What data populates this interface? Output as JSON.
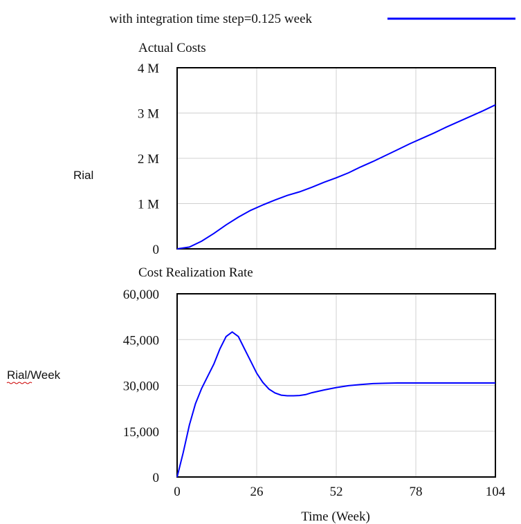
{
  "legend": {
    "label": "with integration time step=0.125 week",
    "color": "#0000ff"
  },
  "chart_data": [
    {
      "type": "line",
      "title": "Actual Costs",
      "ylabel": "Rial",
      "xlabel": "",
      "xlim": [
        0,
        104
      ],
      "ylim": [
        0,
        4000000
      ],
      "x_ticks": [
        0,
        26,
        52,
        78,
        104
      ],
      "y_ticks": [
        0,
        1000000,
        2000000,
        3000000,
        4000000
      ],
      "y_tick_labels": [
        "0",
        "1 M",
        "2 M",
        "3 M",
        "4 M"
      ],
      "grid": true,
      "series": [
        {
          "color": "#0000ff",
          "x": [
            0,
            4,
            8,
            12,
            16,
            20,
            24,
            28,
            32,
            36,
            40,
            44,
            48,
            52,
            56,
            60,
            64,
            68,
            72,
            76,
            80,
            84,
            88,
            92,
            96,
            100,
            104
          ],
          "y": [
            0,
            40000,
            170000,
            340000,
            530000,
            700000,
            850000,
            970000,
            1080000,
            1180000,
            1260000,
            1360000,
            1470000,
            1570000,
            1680000,
            1810000,
            1930000,
            2060000,
            2190000,
            2320000,
            2440000,
            2560000,
            2690000,
            2810000,
            2930000,
            3050000,
            3180000
          ]
        }
      ]
    },
    {
      "type": "line",
      "title": "Cost Realization Rate",
      "ylabel": "Rial/Week",
      "xlabel": "Time (Week)",
      "xlim": [
        0,
        104
      ],
      "ylim": [
        0,
        60000
      ],
      "x_ticks": [
        0,
        26,
        52,
        78,
        104
      ],
      "x_tick_labels": [
        "0",
        "26",
        "52",
        "78",
        "104"
      ],
      "y_ticks": [
        0,
        15000,
        30000,
        45000,
        60000
      ],
      "y_tick_labels": [
        "0",
        "15,000",
        "30,000",
        "45,000",
        "60,000"
      ],
      "grid": true,
      "series": [
        {
          "color": "#0000ff",
          "x": [
            0,
            2,
            4,
            6,
            8,
            10,
            12,
            14,
            16,
            18,
            20,
            22,
            24,
            26,
            28,
            30,
            32,
            34,
            36,
            38,
            40,
            42,
            44,
            48,
            52,
            56,
            60,
            64,
            68,
            72,
            80,
            90,
            104
          ],
          "y": [
            0,
            8000,
            17000,
            24000,
            29000,
            33000,
            37000,
            42000,
            46000,
            47500,
            46000,
            42000,
            38000,
            34000,
            31000,
            28800,
            27500,
            26800,
            26600,
            26600,
            26700,
            27000,
            27600,
            28500,
            29300,
            29900,
            30300,
            30600,
            30700,
            30800,
            30800,
            30800,
            30800
          ]
        }
      ]
    }
  ]
}
